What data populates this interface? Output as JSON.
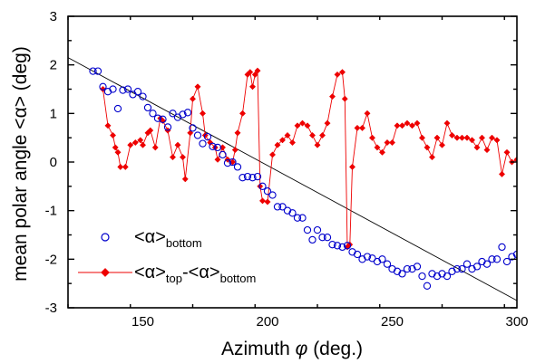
{
  "chart_data": {
    "type": "scatter",
    "xlabel_text": "Azimuth",
    "xlabel_symbol": "φ",
    "xlabel_unit": "(deg.)",
    "ylabel": "mean polar angle <α> (deg)",
    "xlim": [
      120,
      300
    ],
    "ylim": [
      -3,
      3
    ],
    "x_ticks": [
      150,
      200,
      250,
      300
    ],
    "y_ticks": [
      -3,
      -2,
      -1,
      0,
      1,
      2,
      3
    ],
    "grid": false,
    "legend_position": "lower-left",
    "colors": {
      "bottom": "#0000cc",
      "diff": "#ee0000",
      "fit": "#000000"
    },
    "series": [
      {
        "name": "<α>bottom",
        "label_main": "<α>",
        "label_sub": "bottom",
        "marker": "open-circle",
        "points": [
          [
            130,
            1.87
          ],
          [
            132,
            1.87
          ],
          [
            134,
            1.55
          ],
          [
            136,
            1.45
          ],
          [
            138,
            1.5
          ],
          [
            140,
            1.1
          ],
          [
            142,
            1.48
          ],
          [
            144,
            1.5
          ],
          [
            146,
            1.39
          ],
          [
            148,
            1.45
          ],
          [
            150,
            1.35
          ],
          [
            152,
            1.12
          ],
          [
            154,
            1.0
          ],
          [
            156,
            0.9
          ],
          [
            158,
            0.88
          ],
          [
            160,
            0.72
          ],
          [
            162,
            1.0
          ],
          [
            164,
            0.92
          ],
          [
            166,
            0.98
          ],
          [
            168,
            1.02
          ],
          [
            170,
            0.7
          ],
          [
            172,
            0.55
          ],
          [
            174,
            0.38
          ],
          [
            176,
            0.52
          ],
          [
            178,
            0.32
          ],
          [
            180,
            0.3
          ],
          [
            182,
            0.15
          ],
          [
            184,
            -0.02
          ],
          [
            186,
            0.0
          ],
          [
            188,
            -0.1
          ],
          [
            190,
            -0.32
          ],
          [
            192,
            -0.3
          ],
          [
            194,
            -0.32
          ],
          [
            196,
            -0.3
          ],
          [
            198,
            -0.5
          ],
          [
            200,
            -0.6
          ],
          [
            202,
            -0.68
          ],
          [
            204,
            -0.92
          ],
          [
            206,
            -0.92
          ],
          [
            208,
            -1.0
          ],
          [
            210,
            -1.05
          ],
          [
            212,
            -1.15
          ],
          [
            214,
            -1.15
          ],
          [
            216,
            -1.4
          ],
          [
            218,
            -1.6
          ],
          [
            220,
            -1.4
          ],
          [
            222,
            -1.55
          ],
          [
            224,
            -1.55
          ],
          [
            226,
            -1.7
          ],
          [
            228,
            -1.72
          ],
          [
            230,
            -1.75
          ],
          [
            232,
            -1.72
          ],
          [
            234,
            -1.85
          ],
          [
            236,
            -1.9
          ],
          [
            238,
            -2.0
          ],
          [
            240,
            -1.95
          ],
          [
            242,
            -1.98
          ],
          [
            244,
            -2.05
          ],
          [
            246,
            -2.0
          ],
          [
            248,
            -2.1
          ],
          [
            250,
            -2.2
          ],
          [
            252,
            -2.25
          ],
          [
            254,
            -2.3
          ],
          [
            256,
            -2.2
          ],
          [
            258,
            -2.2
          ],
          [
            260,
            -2.15
          ],
          [
            262,
            -2.35
          ],
          [
            264,
            -2.55
          ],
          [
            266,
            -2.3
          ],
          [
            268,
            -2.35
          ],
          [
            270,
            -2.3
          ],
          [
            272,
            -2.35
          ],
          [
            274,
            -2.25
          ],
          [
            276,
            -2.2
          ],
          [
            278,
            -2.2
          ],
          [
            280,
            -2.1
          ],
          [
            282,
            -2.2
          ],
          [
            284,
            -2.15
          ],
          [
            286,
            -2.05
          ],
          [
            288,
            -2.1
          ],
          [
            290,
            -2.0
          ],
          [
            292,
            -2.0
          ],
          [
            294,
            -1.75
          ],
          [
            296,
            -2.05
          ],
          [
            298,
            -1.95
          ],
          [
            300,
            -1.9
          ]
        ]
      },
      {
        "name": "<α>top-<α>bottom",
        "label_main1": "<α>",
        "label_sub1": "top",
        "label_mid": "-<α>",
        "label_sub2": "bottom",
        "marker": "filled-diamond",
        "points": [
          [
            134,
            1.5
          ],
          [
            136,
            0.75
          ],
          [
            138,
            0.55
          ],
          [
            139,
            0.3
          ],
          [
            140,
            0.2
          ],
          [
            141,
            -0.1
          ],
          [
            143,
            -0.1
          ],
          [
            145,
            0.35
          ],
          [
            147,
            0.4
          ],
          [
            149,
            0.45
          ],
          [
            150,
            0.35
          ],
          [
            152,
            0.6
          ],
          [
            153,
            0.65
          ],
          [
            155,
            0.3
          ],
          [
            157,
            0.9
          ],
          [
            158,
            0.85
          ],
          [
            160,
            0.65
          ],
          [
            162,
            0.1
          ],
          [
            164,
            0.35
          ],
          [
            166,
            0.1
          ],
          [
            167,
            -0.35
          ],
          [
            169,
            0.6
          ],
          [
            170,
            1.3
          ],
          [
            172,
            1.55
          ],
          [
            174,
            1.0
          ],
          [
            175,
            0.55
          ],
          [
            177,
            0.4
          ],
          [
            179,
            0.3
          ],
          [
            180,
            0.05
          ],
          [
            182,
            0.3
          ],
          [
            184,
            0.05
          ],
          [
            186,
            0.0
          ],
          [
            187,
            0.25
          ],
          [
            188,
            0.6
          ],
          [
            190,
            1.0
          ],
          [
            192,
            1.8
          ],
          [
            193,
            1.85
          ],
          [
            194,
            1.55
          ],
          [
            195,
            1.8
          ],
          [
            196,
            1.88
          ],
          [
            197,
            -0.5
          ],
          [
            198,
            -0.8
          ],
          [
            200,
            -0.82
          ],
          [
            202,
            0.15
          ],
          [
            204,
            0.35
          ],
          [
            206,
            0.45
          ],
          [
            208,
            0.55
          ],
          [
            210,
            0.4
          ],
          [
            212,
            0.75
          ],
          [
            214,
            0.8
          ],
          [
            216,
            0.75
          ],
          [
            218,
            0.55
          ],
          [
            220,
            0.35
          ],
          [
            222,
            0.55
          ],
          [
            224,
            0.8
          ],
          [
            226,
            1.35
          ],
          [
            228,
            1.8
          ],
          [
            230,
            1.85
          ],
          [
            231,
            1.3
          ],
          [
            232,
            -1.75
          ],
          [
            233,
            -1.7
          ],
          [
            234,
            -0.1
          ],
          [
            236,
            0.7
          ],
          [
            238,
            0.7
          ],
          [
            240,
            1.0
          ],
          [
            242,
            0.5
          ],
          [
            244,
            0.3
          ],
          [
            246,
            0.2
          ],
          [
            248,
            0.4
          ],
          [
            250,
            0.4
          ],
          [
            252,
            0.75
          ],
          [
            254,
            0.75
          ],
          [
            256,
            0.8
          ],
          [
            258,
            0.75
          ],
          [
            260,
            0.8
          ],
          [
            262,
            0.5
          ],
          [
            264,
            0.3
          ],
          [
            266,
            0.1
          ],
          [
            268,
            0.5
          ],
          [
            270,
            0.35
          ],
          [
            272,
            0.8
          ],
          [
            274,
            0.55
          ],
          [
            276,
            0.5
          ],
          [
            278,
            0.5
          ],
          [
            280,
            0.5
          ],
          [
            282,
            0.45
          ],
          [
            284,
            0.3
          ],
          [
            286,
            0.5
          ],
          [
            288,
            0.25
          ],
          [
            290,
            0.5
          ],
          [
            292,
            0.45
          ],
          [
            294,
            -0.25
          ],
          [
            296,
            0.2
          ],
          [
            298,
            0.0
          ],
          [
            300,
            0.05
          ]
        ]
      },
      {
        "name": "",
        "marker": "line",
        "points": [
          [
            120,
            2.15
          ],
          [
            300,
            -2.85
          ]
        ]
      }
    ]
  }
}
